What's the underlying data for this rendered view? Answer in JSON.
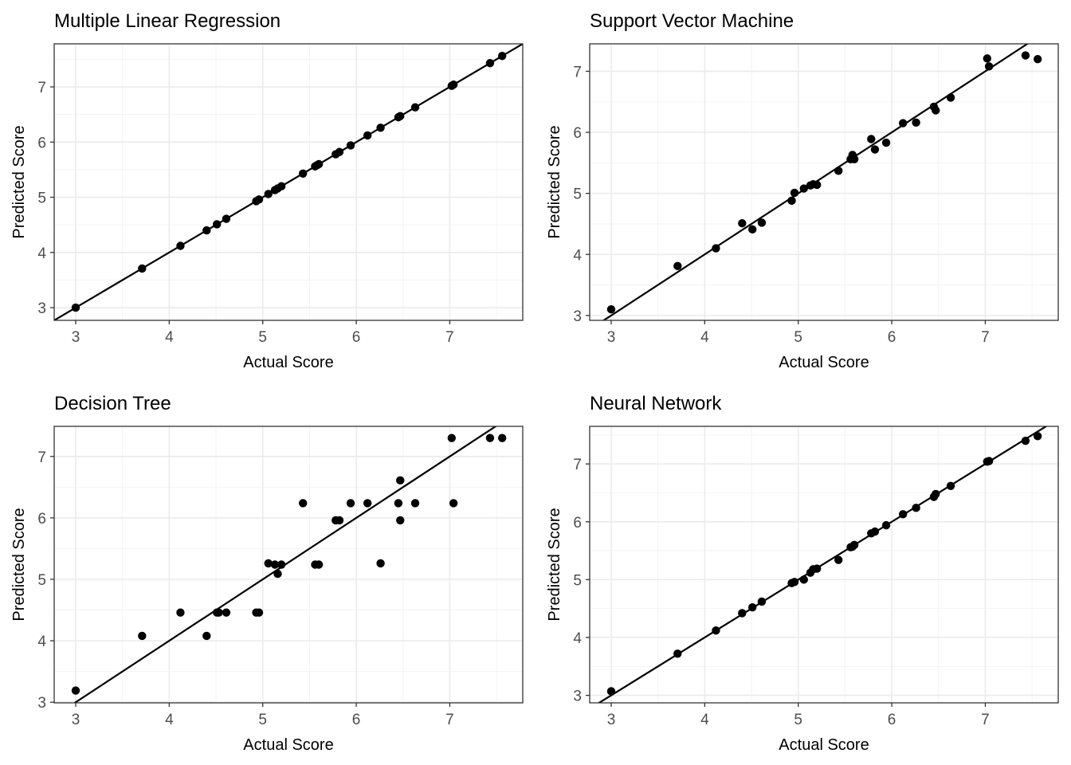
{
  "chart_data": [
    {
      "type": "scatter",
      "title": "Multiple Linear Regression",
      "xlabel": "Actual Score",
      "ylabel": "Predicted Score",
      "xlim": [
        2.77,
        7.78
      ],
      "ylim": [
        2.77,
        7.78
      ],
      "xticks": [
        3,
        4,
        5,
        6,
        7
      ],
      "yticks": [
        3,
        4,
        5,
        6,
        7
      ],
      "grid": true,
      "reference_line": "y = x",
      "x": [
        3.0,
        3.71,
        4.12,
        4.4,
        4.51,
        4.61,
        4.93,
        4.96,
        5.06,
        5.13,
        5.16,
        5.2,
        5.43,
        5.56,
        5.58,
        5.6,
        5.78,
        5.82,
        5.94,
        6.12,
        6.26,
        6.45,
        6.47,
        6.63,
        7.02,
        7.04,
        7.43,
        7.56
      ],
      "y": [
        3.0,
        3.71,
        4.12,
        4.4,
        4.51,
        4.61,
        4.93,
        4.96,
        5.06,
        5.13,
        5.16,
        5.2,
        5.43,
        5.56,
        5.58,
        5.6,
        5.78,
        5.82,
        5.94,
        6.12,
        6.26,
        6.45,
        6.47,
        6.63,
        7.02,
        7.04,
        7.43,
        7.56
      ]
    },
    {
      "type": "scatter",
      "title": "Support Vector Machine",
      "xlabel": "Actual Score",
      "ylabel": "Predicted Score",
      "xlim": [
        2.77,
        7.78
      ],
      "ylim": [
        2.92,
        7.45
      ],
      "xticks": [
        3,
        4,
        5,
        6,
        7
      ],
      "yticks": [
        3,
        4,
        5,
        6,
        7
      ],
      "grid": true,
      "reference_line": "y = x",
      "x": [
        3.0,
        3.71,
        4.12,
        4.4,
        4.51,
        4.61,
        4.93,
        4.96,
        5.06,
        5.13,
        5.16,
        5.2,
        5.43,
        5.56,
        5.58,
        5.6,
        5.78,
        5.82,
        5.94,
        6.12,
        6.26,
        6.45,
        6.47,
        6.63,
        7.02,
        7.04,
        7.43,
        7.56
      ],
      "y": [
        3.1,
        3.81,
        4.1,
        4.51,
        4.41,
        4.52,
        4.88,
        5.01,
        5.08,
        5.13,
        5.15,
        5.14,
        5.37,
        5.56,
        5.63,
        5.56,
        5.89,
        5.72,
        5.83,
        6.15,
        6.16,
        6.42,
        6.36,
        6.57,
        7.21,
        7.08,
        7.26,
        7.2
      ]
    },
    {
      "type": "scatter",
      "title": "Decision Tree",
      "xlabel": "Actual Score",
      "ylabel": "Predicted Score",
      "xlim": [
        2.77,
        7.78
      ],
      "ylim": [
        2.99,
        7.49
      ],
      "xticks": [
        3,
        4,
        5,
        6,
        7
      ],
      "yticks": [
        3,
        4,
        5,
        6,
        7
      ],
      "grid": true,
      "reference_line": "y = x",
      "x": [
        3.0,
        3.71,
        4.12,
        4.4,
        4.51,
        4.53,
        4.61,
        4.93,
        4.96,
        5.06,
        5.13,
        5.16,
        5.2,
        5.43,
        5.56,
        5.6,
        5.78,
        5.82,
        5.94,
        6.12,
        6.26,
        6.45,
        6.47,
        6.47,
        6.63,
        7.02,
        7.04,
        7.43,
        7.56
      ],
      "y": [
        3.19,
        4.08,
        4.46,
        4.08,
        4.46,
        4.46,
        4.46,
        4.46,
        4.46,
        5.26,
        5.24,
        5.09,
        5.24,
        6.24,
        5.24,
        5.24,
        5.96,
        5.96,
        6.24,
        6.24,
        5.26,
        6.24,
        5.96,
        6.61,
        6.24,
        7.3,
        6.24,
        7.3,
        7.3
      ]
    },
    {
      "type": "scatter",
      "title": "Neural Network",
      "xlabel": "Actual Score",
      "ylabel": "Predicted Score",
      "xlim": [
        2.77,
        7.78
      ],
      "ylim": [
        2.87,
        7.65
      ],
      "xticks": [
        3,
        4,
        5,
        6,
        7
      ],
      "yticks": [
        3,
        4,
        5,
        6,
        7
      ],
      "grid": true,
      "reference_line": "y = x",
      "x": [
        3.0,
        3.71,
        4.12,
        4.4,
        4.51,
        4.61,
        4.93,
        4.96,
        5.06,
        5.13,
        5.16,
        5.2,
        5.43,
        5.56,
        5.58,
        5.6,
        5.78,
        5.82,
        5.94,
        6.12,
        6.26,
        6.45,
        6.47,
        6.63,
        7.02,
        7.04,
        7.43,
        7.56
      ],
      "y": [
        3.07,
        3.72,
        4.12,
        4.42,
        4.52,
        4.62,
        4.94,
        4.96,
        5.0,
        5.12,
        5.18,
        5.19,
        5.34,
        5.56,
        5.57,
        5.6,
        5.8,
        5.83,
        5.94,
        6.13,
        6.24,
        6.43,
        6.48,
        6.62,
        7.04,
        7.05,
        7.4,
        7.48
      ]
    }
  ]
}
